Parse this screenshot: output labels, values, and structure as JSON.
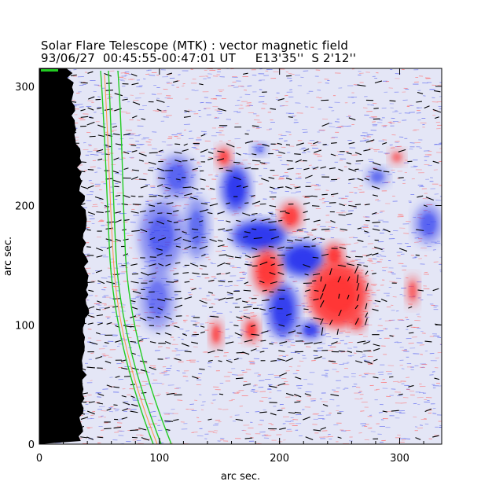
{
  "figure": {
    "title": "Solar Flare Telescope (MTK) : vector magnetic field",
    "subtitle": "93/06/27  00:45:55-00:47:01 UT     E13'35''  S 2'12''"
  },
  "chart_data": {
    "type": "heatmap",
    "xlabel": "arc sec.",
    "ylabel": "arc sec.",
    "xlim": [
      0,
      335
    ],
    "ylim": [
      0,
      315
    ],
    "x_ticks": [
      "0",
      "100",
      "200",
      "300"
    ],
    "y_ticks": [
      "0",
      "100",
      "200",
      "300"
    ],
    "colors": {
      "positive_polarity": "#ff6666",
      "negative_polarity": "#5560ee",
      "limb_background": "#000000",
      "contour": "#22cc22",
      "vectors": "#000000"
    }
  }
}
